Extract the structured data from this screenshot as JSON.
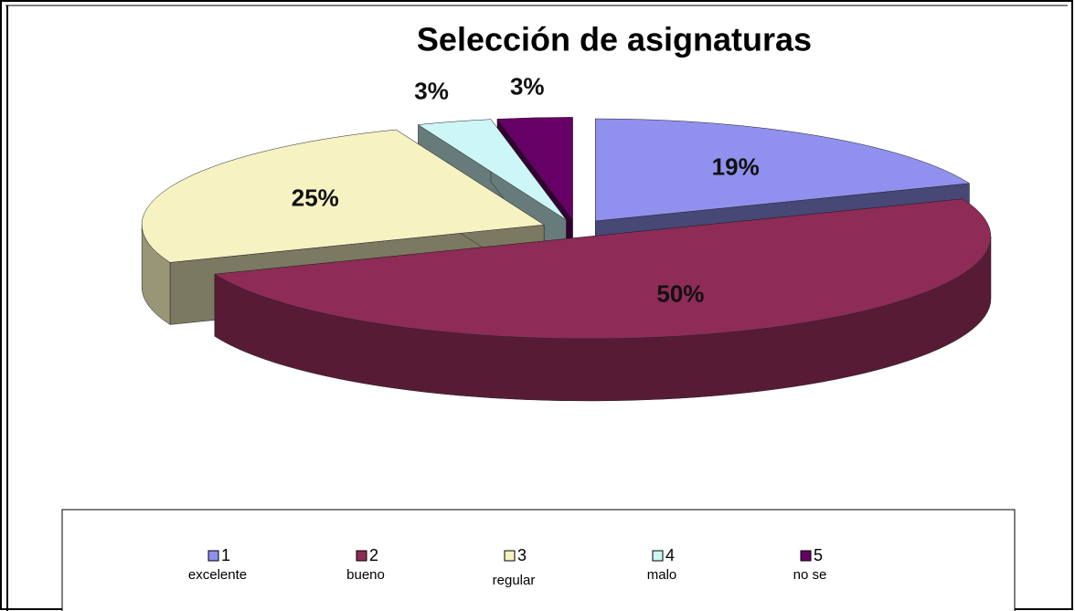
{
  "chart_data": {
    "type": "pie3d",
    "title": "Selección de asignaturas",
    "categories": [
      "1",
      "2",
      "3",
      "4",
      "5"
    ],
    "descriptions": [
      "excelente",
      "bueno",
      "regular",
      "malo",
      "no se"
    ],
    "values": [
      19,
      50,
      25,
      3,
      3
    ],
    "value_labels": [
      "19%",
      "50%",
      "25%",
      "3%",
      "3%"
    ],
    "colors": [
      "#9090ee",
      "#8e2b57",
      "#f6f2c2",
      "#cdf6f6",
      "#660066"
    ],
    "legend": "bottom"
  }
}
